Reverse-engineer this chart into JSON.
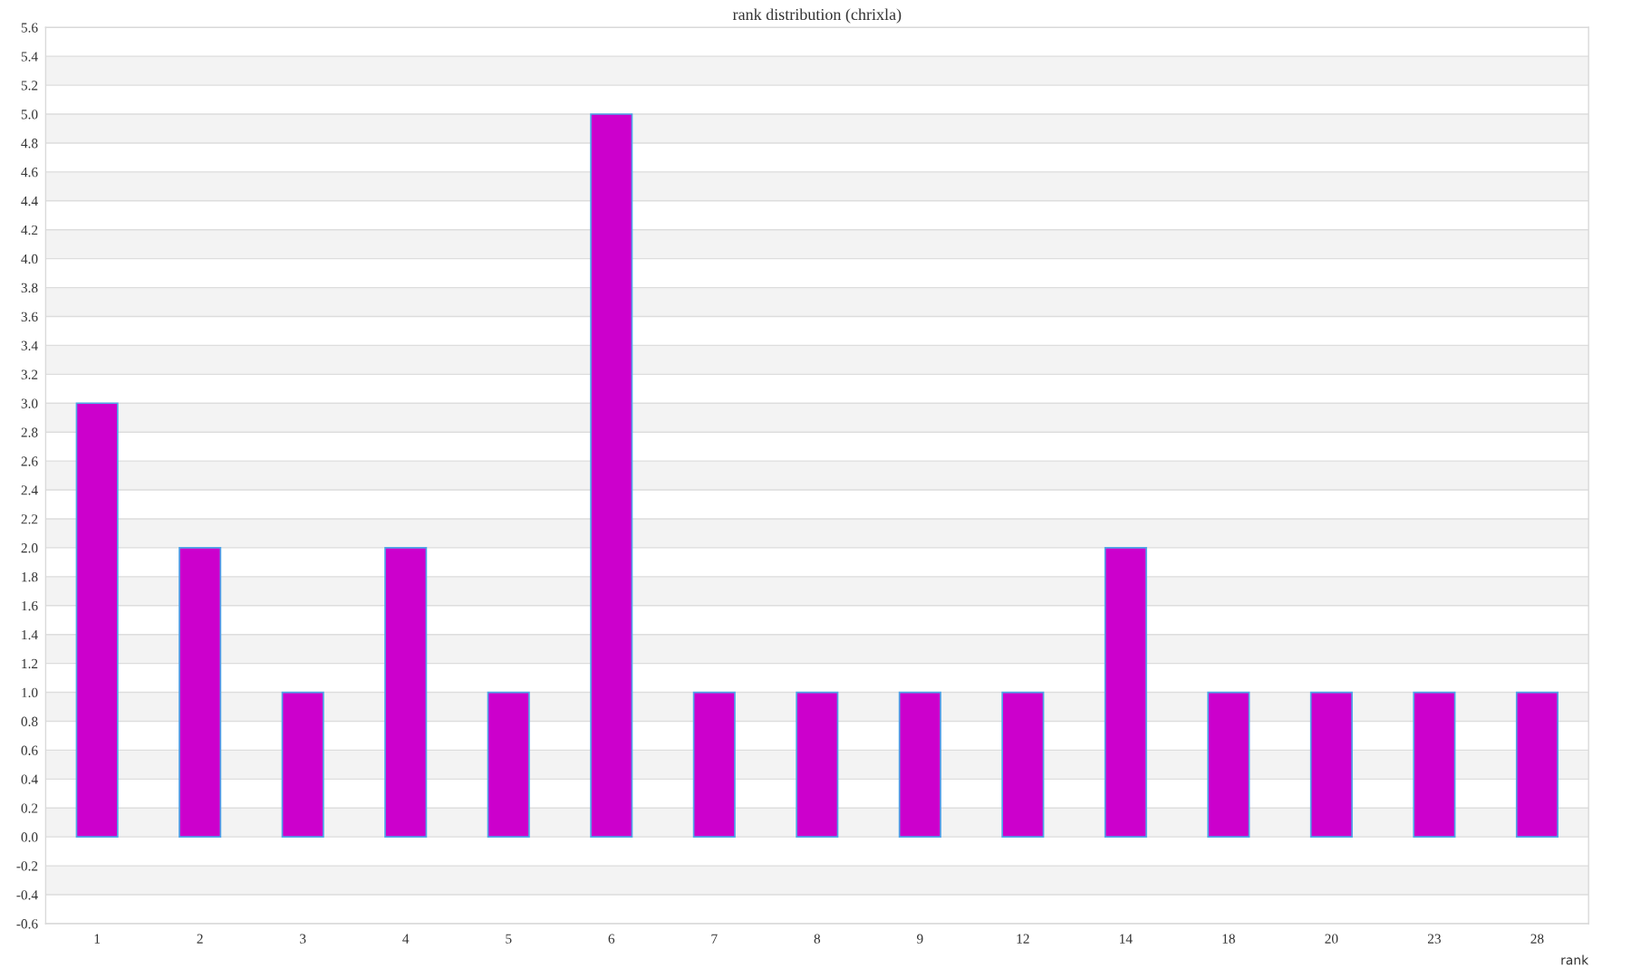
{
  "chart_data": {
    "type": "bar",
    "title": "rank distribution (chrixla)",
    "xlabel": "rank",
    "categories": [
      "1",
      "2",
      "3",
      "4",
      "5",
      "6",
      "7",
      "8",
      "9",
      "12",
      "14",
      "18",
      "20",
      "23",
      "28"
    ],
    "values": [
      3,
      2,
      1,
      2,
      1,
      5,
      1,
      1,
      1,
      1,
      2,
      1,
      1,
      1,
      1
    ],
    "color": "#cc00cc",
    "ylim": [
      -0.6,
      5.6
    ],
    "yticks": [
      -0.6,
      -0.4,
      -0.2,
      {
        "value": 0,
        "label": "0.0"
      },
      0.2,
      0.4,
      0.6,
      0.8,
      {
        "value": 1,
        "label": "1.0"
      },
      1.2,
      1.4,
      1.6,
      1.8,
      {
        "value": 2,
        "label": "2.0"
      },
      2.2,
      2.4,
      2.6,
      2.8,
      {
        "value": 3,
        "label": "3.0"
      },
      3.2,
      3.4,
      3.6,
      3.8,
      {
        "value": 4,
        "label": "4.0"
      },
      4.2,
      4.4,
      4.6,
      4.8,
      {
        "value": 5,
        "label": "5.0"
      },
      5.2,
      5.4,
      5.6
    ],
    "grid": "y",
    "legend": false
  }
}
